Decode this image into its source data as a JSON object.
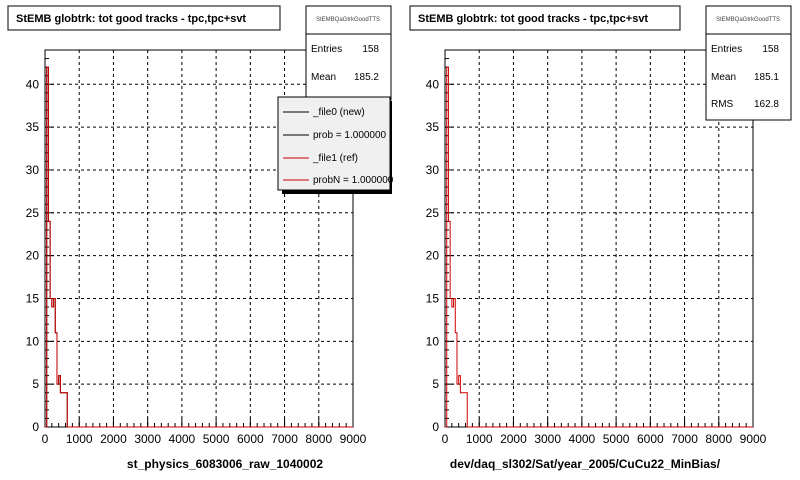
{
  "colors": {
    "new_series": "#000000",
    "ref_series": "#cc0000",
    "grid": "#000000",
    "background": "#ffffff",
    "legend_bg": "#f0f0f0"
  },
  "chart_data": [
    {
      "type": "line",
      "title": "StEMB globtrk: tot good tracks - tpc,tpc+svt",
      "xlabel": "st_physics_6083006_raw_1040002",
      "ylabel": "",
      "xlim": [
        0,
        9000
      ],
      "ylim": [
        0,
        44
      ],
      "xticks": [
        "0",
        "1000",
        "2000",
        "3000",
        "4000",
        "5000",
        "6000",
        "7000",
        "8000",
        "9000"
      ],
      "yticks": [
        "0",
        "5",
        "10",
        "15",
        "20",
        "25",
        "30",
        "35",
        "40"
      ],
      "grid": true,
      "stats": {
        "header": "StEMBQaGtrkGoodTTS",
        "rows": [
          {
            "label": "Entries",
            "value": "158"
          },
          {
            "label": "Mean",
            "value": "185.2"
          }
        ]
      },
      "legend": {
        "placement": "top-right",
        "entries": [
          "_file0 (new)",
          "prob = 1.000000",
          "_file1 (ref)",
          "probN = 1.000000"
        ]
      },
      "series": [
        {
          "name": "_file0 (new)",
          "x": [
            0,
            50,
            100,
            150,
            200,
            250,
            300,
            350,
            400,
            450,
            500,
            550,
            600,
            650,
            700
          ],
          "values": [
            0,
            42,
            24,
            15,
            14,
            15,
            11,
            5,
            6,
            4,
            4,
            4,
            4,
            0,
            0
          ]
        },
        {
          "name": "_file1 (ref)",
          "x": [
            0,
            50,
            100,
            150,
            200,
            250,
            300,
            350,
            400,
            450,
            500,
            550,
            600,
            650,
            700
          ],
          "values": [
            0,
            42,
            24,
            15,
            14,
            15,
            11,
            5,
            6,
            4,
            4,
            4,
            4,
            0,
            0
          ]
        }
      ]
    },
    {
      "type": "line",
      "title": "StEMB globtrk: tot good tracks - tpc,tpc+svt",
      "xlabel": "dev/daq_sl302/Sat/year_2005/CuCu22_MinBias/",
      "ylabel": "",
      "xlim": [
        0,
        9000
      ],
      "ylim": [
        0,
        44
      ],
      "xticks": [
        "0",
        "1000",
        "2000",
        "3000",
        "4000",
        "5000",
        "6000",
        "7000",
        "8000",
        "9000"
      ],
      "yticks": [
        "0",
        "5",
        "10",
        "15",
        "20",
        "25",
        "30",
        "35",
        "40"
      ],
      "grid": true,
      "stats": {
        "header": "StEMBQaGtrkGoodTTS",
        "rows": [
          {
            "label": "Entries",
            "value": "158"
          },
          {
            "label": "Mean",
            "value": "185.1"
          },
          {
            "label": "RMS",
            "value": "162.8"
          }
        ]
      },
      "series": [
        {
          "name": "",
          "x": [
            0,
            50,
            100,
            150,
            200,
            250,
            300,
            350,
            400,
            450,
            500,
            550,
            600,
            650,
            700
          ],
          "values": [
            0,
            42,
            24,
            15,
            14,
            15,
            11,
            5,
            6,
            4,
            4,
            4,
            4,
            0,
            0
          ]
        }
      ]
    }
  ],
  "footer": {
    "bottom_left": ""
  }
}
